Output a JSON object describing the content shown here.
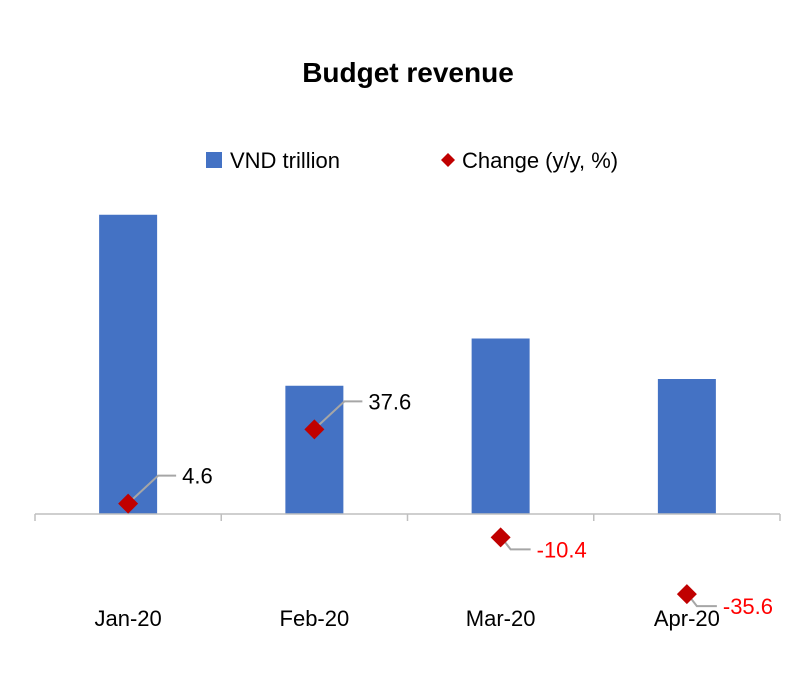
{
  "chart_data": {
    "type": "bar",
    "title": "Budget revenue",
    "categories": [
      "Jan-20",
      "Feb-20",
      "Mar-20",
      "Apr-20"
    ],
    "legend": {
      "position": "top-center"
    },
    "grid": false,
    "series": [
      {
        "name": "VND trillion",
        "type": "bar",
        "color": "#4472C4",
        "values": [
          133,
          57,
          78,
          60
        ]
      },
      {
        "name": "Change (y/y, %)",
        "type": "scatter",
        "marker": "diamond",
        "color": "#C00000",
        "values": [
          4.6,
          37.6,
          -10.4,
          -35.6
        ],
        "labels": [
          "4.6",
          "37.6",
          "-10.4",
          "-35.6"
        ],
        "label_colors": [
          "#000000",
          "#000000",
          "#FF0000",
          "#FF0000"
        ]
      }
    ],
    "axes": {
      "bar_ylim": [
        -40,
        140
      ],
      "marker_ylim": [
        -40,
        140
      ]
    }
  }
}
